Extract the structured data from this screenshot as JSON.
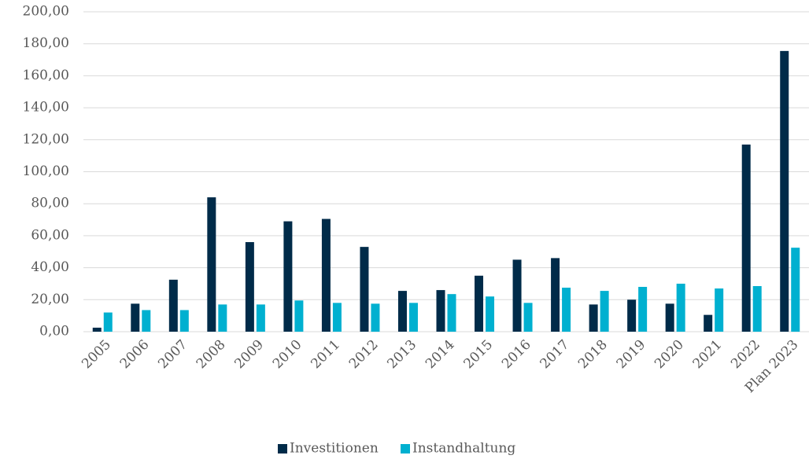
{
  "chart_data": {
    "type": "bar",
    "categories": [
      "2005",
      "2006",
      "2007",
      "2008",
      "2009",
      "2010",
      "2011",
      "2012",
      "2013",
      "2014",
      "2015",
      "2016",
      "2017",
      "2018",
      "2019",
      "2020",
      "2021",
      "2022",
      "Plan 2023"
    ],
    "series": [
      {
        "name": "Investitionen",
        "color": "#002b49",
        "values": [
          2.5,
          17.5,
          32.5,
          84,
          56,
          69,
          70.5,
          53,
          25.5,
          26,
          35,
          45,
          46,
          17,
          20,
          17.5,
          10.5,
          117,
          175.5
        ]
      },
      {
        "name": "Instandhaltung",
        "color": "#00b0d0",
        "values": [
          12,
          13.5,
          13.5,
          17,
          17,
          19.5,
          18,
          17.5,
          18,
          23.5,
          22,
          18,
          27.5,
          25.5,
          28,
          30,
          27,
          28.5,
          52.5
        ]
      }
    ],
    "ylim": [
      0,
      200
    ],
    "yticks": [
      {
        "value": 0,
        "label": "0,00"
      },
      {
        "value": 20,
        "label": "20,00"
      },
      {
        "value": 40,
        "label": "40,00"
      },
      {
        "value": 60,
        "label": "60,00"
      },
      {
        "value": 80,
        "label": "80,00"
      },
      {
        "value": 100,
        "label": "100,00"
      },
      {
        "value": 120,
        "label": "120,00"
      },
      {
        "value": 140,
        "label": "140,00"
      },
      {
        "value": 160,
        "label": "160,00"
      },
      {
        "value": 180,
        "label": "180,00"
      },
      {
        "value": 200,
        "label": "200,00"
      }
    ],
    "grid": true,
    "legend": "bottom"
  }
}
